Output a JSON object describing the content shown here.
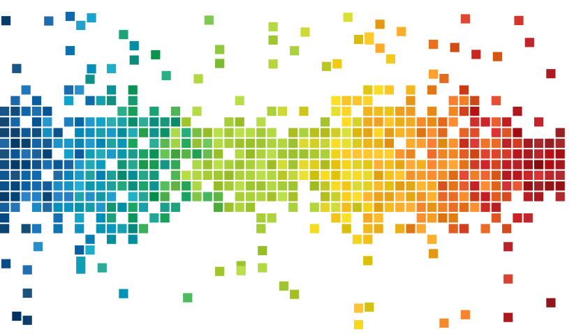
{
  "palette": {
    "navy": "#0a3f6b",
    "blue": "#1a6fb5",
    "cyan": "#0fa1c7",
    "teal": "#1b9b8a",
    "green": "#16a05a",
    "lime": "#a8cf38",
    "yellow": "#f2cf16",
    "amber": "#f4ae23",
    "orange": "#ef7a22",
    "red": "#c81f26",
    "maroon": "#8a1a1c"
  }
}
